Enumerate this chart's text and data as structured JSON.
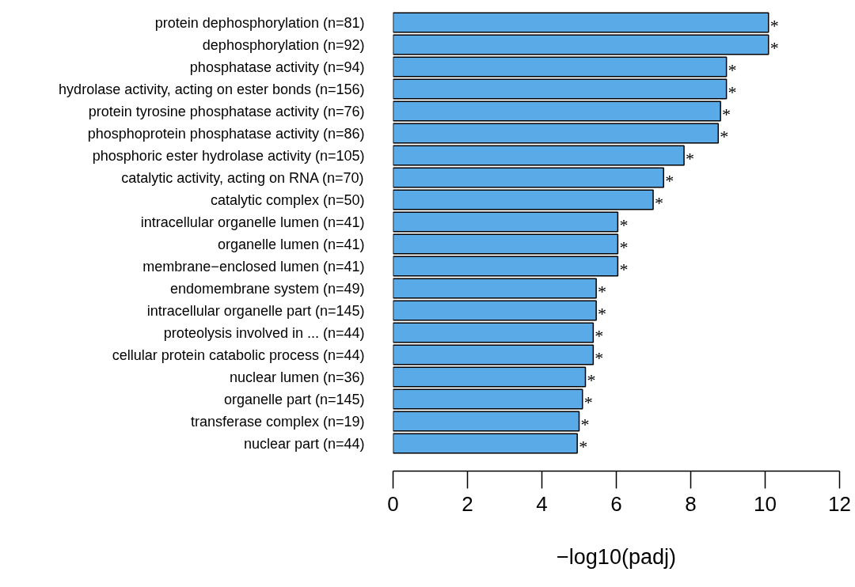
{
  "chart_data": {
    "type": "bar",
    "orientation": "horizontal",
    "xlabel": "−log10(padj)",
    "categories": [
      "protein dephosphorylation (n=81)",
      "dephosphorylation (n=92)",
      "phosphatase activity (n=94)",
      "hydrolase activity, acting on ester bonds (n=156)",
      "protein tyrosine phosphatase activity (n=76)",
      "phosphoprotein phosphatase activity (n=86)",
      "phosphoric ester hydrolase activity (n=105)",
      "catalytic activity, acting on RNA (n=70)",
      "catalytic complex (n=50)",
      "intracellular organelle lumen (n=41)",
      "organelle lumen (n=41)",
      "membrane−enclosed lumen (n=41)",
      "endomembrane system (n=49)",
      "intracellular organelle part (n=145)",
      "proteolysis involved in ... (n=44)",
      "cellular protein catabolic process (n=44)",
      "nuclear lumen (n=36)",
      "organelle part (n=145)",
      "transferase complex (n=19)",
      "nuclear part (n=44)"
    ],
    "values": [
      10.09,
      10.09,
      8.96,
      8.96,
      8.8,
      8.74,
      7.82,
      7.27,
      6.99,
      6.04,
      6.04,
      6.04,
      5.46,
      5.46,
      5.38,
      5.38,
      5.17,
      5.09,
      5.0,
      4.95
    ],
    "value_labels": [
      "*",
      "*",
      "*",
      "*",
      "*",
      "*",
      "*",
      "*",
      "*",
      "*",
      "*",
      "*",
      "*",
      "*",
      "*",
      "*",
      "*",
      "*",
      "*",
      "*"
    ],
    "color": "#5aaae8",
    "xlim": [
      0,
      12
    ],
    "xticks": [
      0,
      2,
      4,
      6,
      8,
      10,
      12
    ],
    "grid": false
  }
}
